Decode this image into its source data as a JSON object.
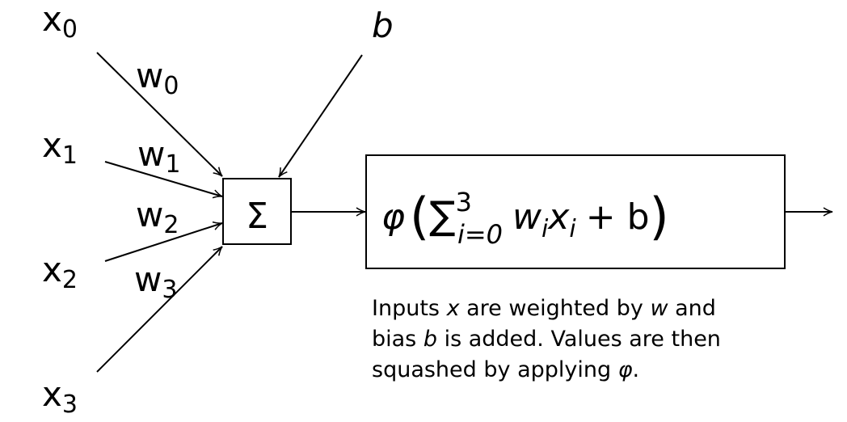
{
  "inputs": [
    {
      "label": "x",
      "sub": "0"
    },
    {
      "label": "x",
      "sub": "1"
    },
    {
      "label": "x",
      "sub": "2"
    },
    {
      "label": "x",
      "sub": "3"
    }
  ],
  "weights": [
    {
      "label": "w",
      "sub": "0"
    },
    {
      "label": "w",
      "sub": "1"
    },
    {
      "label": "w",
      "sub": "2"
    },
    {
      "label": "w",
      "sub": "3"
    }
  ],
  "bias": "b",
  "sum_node": "Σ",
  "activation": {
    "phi": "φ",
    "open": "(",
    "sum": "∑",
    "upper": "3",
    "lower": "i=0",
    "w": "w",
    "w_sub": "i",
    "x": "x",
    "x_sub": "i",
    "rest": "+ b",
    "close": ")"
  },
  "caption": [
    [
      "Inputs ",
      "x",
      " are weighted by ",
      "w",
      " and"
    ],
    [
      "bias ",
      "b",
      " is added. Values are then"
    ],
    [
      "squashed by applying ",
      "φ",
      "."
    ]
  ]
}
